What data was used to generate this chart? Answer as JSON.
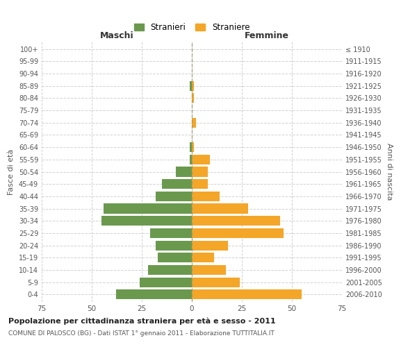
{
  "age_groups": [
    "0-4",
    "5-9",
    "10-14",
    "15-19",
    "20-24",
    "25-29",
    "30-34",
    "35-39",
    "40-44",
    "45-49",
    "50-54",
    "55-59",
    "60-64",
    "65-69",
    "70-74",
    "75-79",
    "80-84",
    "85-89",
    "90-94",
    "95-99",
    "100+"
  ],
  "birth_years": [
    "2006-2010",
    "2001-2005",
    "1996-2000",
    "1991-1995",
    "1986-1990",
    "1981-1985",
    "1976-1980",
    "1971-1975",
    "1966-1970",
    "1961-1965",
    "1956-1960",
    "1951-1955",
    "1946-1950",
    "1941-1945",
    "1936-1940",
    "1931-1935",
    "1926-1930",
    "1921-1925",
    "1916-1920",
    "1911-1915",
    "≤ 1910"
  ],
  "males": [
    38,
    26,
    22,
    17,
    18,
    21,
    45,
    44,
    18,
    15,
    8,
    1,
    1,
    0,
    0,
    0,
    0,
    1,
    0,
    0,
    0
  ],
  "females": [
    55,
    24,
    17,
    11,
    18,
    46,
    44,
    28,
    14,
    8,
    8,
    9,
    1,
    0,
    2,
    0,
    1,
    1,
    0,
    0,
    0
  ],
  "male_color": "#6a994e",
  "female_color": "#f4a628",
  "background_color": "#ffffff",
  "grid_color": "#cccccc",
  "title": "Popolazione per cittadinanza straniera per età e sesso - 2011",
  "subtitle": "COMUNE DI PALOSCO (BG) - Dati ISTAT 1° gennaio 2011 - Elaborazione TUTTITALIA.IT",
  "xlabel_left": "Maschi",
  "xlabel_right": "Femmine",
  "ylabel_left": "Fasce di età",
  "ylabel_right": "Anni di nascita",
  "legend_male": "Stranieri",
  "legend_female": "Straniere",
  "xlim": 75,
  "bar_height": 0.8
}
